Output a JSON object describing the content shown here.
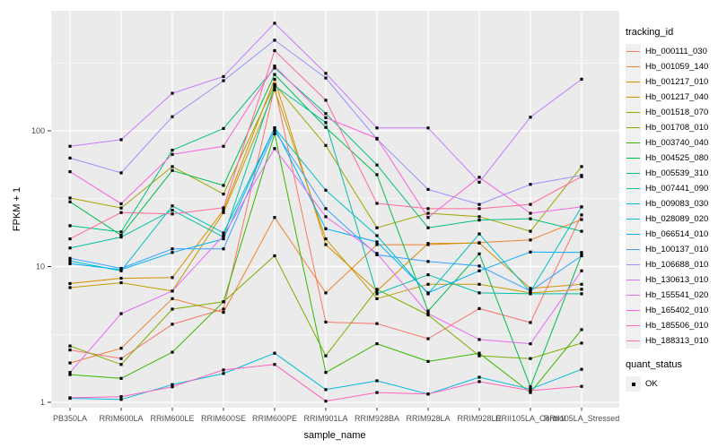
{
  "figure": {
    "panel_background": "#EBEBEB",
    "gridline_color": "#FFFFFF",
    "tick_label_color": "#4D4D4D",
    "tick_mark_color": "#333333",
    "point_color": "#000000"
  },
  "chart_data": {
    "type": "line",
    "xlabel": "sample_name",
    "ylabel": "FPKM + 1",
    "y_scale": "log10",
    "y_ticks": [
      1,
      10,
      100
    ],
    "ylim": [
      0.9,
      700
    ],
    "grid": "major+minor",
    "legend_position": "right",
    "point_shape": "filled-black-square",
    "categories": [
      "PB350LA",
      "RRIM600LA",
      "RRIM600LE",
      "RRIM600SE",
      "RRIM600PE",
      "RRIM901LA",
      "RRIM928BA",
      "RRIM928LA",
      "RRIM928LE",
      "RRII105LA_Control",
      "RRII105LA_Stressed"
    ],
    "legend": {
      "tracking_title": "tracking_id",
      "quant_title": "quant_status",
      "quant_value": "OK"
    },
    "series": [
      {
        "name": "Hb_000111_030",
        "color": "#F8766D",
        "values": [
          2.43,
          2.1,
          3.76,
          4.86,
          210,
          3.9,
          3.8,
          2.94,
          4.9,
          3.87,
          24
        ]
      },
      {
        "name": "Hb_001059_140",
        "color": "#EA8331",
        "values": [
          1.95,
          2.5,
          5.8,
          4.6,
          23,
          6.4,
          14.5,
          14.5,
          15,
          15.7,
          22.2
        ]
      },
      {
        "name": "Hb_001217_010",
        "color": "#D89000",
        "values": [
          7.5,
          8.2,
          8.3,
          26,
          240,
          14.5,
          6.6,
          14.8,
          14.9,
          6.9,
          7.4
        ]
      },
      {
        "name": "Hb_001217_040",
        "color": "#C09B00",
        "values": [
          7.0,
          7.6,
          6.6,
          25,
          200,
          16,
          5.8,
          7.4,
          7.4,
          6.4,
          6.8
        ]
      },
      {
        "name": "Hb_001518_070",
        "color": "#A3A500",
        "values": [
          32,
          27,
          54.5,
          34.2,
          220,
          78,
          19.3,
          24.7,
          23.3,
          18.2,
          54.5
        ]
      },
      {
        "name": "Hb_001708_010",
        "color": "#7CAE00",
        "values": [
          2.6,
          1.9,
          4.86,
          5.5,
          12,
          2.2,
          6.8,
          4.4,
          2.2,
          2.1,
          2.73
        ]
      },
      {
        "name": "Hb_003740_040",
        "color": "#39B600",
        "values": [
          1.6,
          1.5,
          2.34,
          5.5,
          95,
          1.66,
          2.7,
          2.0,
          2.3,
          1.18,
          3.43
        ]
      },
      {
        "name": "Hb_004525_080",
        "color": "#00BB4E",
        "values": [
          30,
          17,
          51,
          39.6,
          260,
          106,
          47.5,
          4.7,
          12.4,
          1.3,
          12.2
        ]
      },
      {
        "name": "Hb_005539_310",
        "color": "#00BF7D",
        "values": [
          20,
          18,
          72,
          104,
          290,
          134,
          56,
          19.3,
          22,
          22.5,
          18.2
        ]
      },
      {
        "name": "Hb_007441_090",
        "color": "#00C1A3",
        "values": [
          13.7,
          16.5,
          26,
          16.5,
          215,
          115,
          6.3,
          8.7,
          6.4,
          6.3,
          6.3
        ]
      },
      {
        "name": "Hb_009083_030",
        "color": "#00BFC4",
        "values": [
          11,
          9.3,
          28,
          17.7,
          105,
          36.5,
          16.9,
          6.3,
          17.4,
          6.5,
          27.5
        ]
      },
      {
        "name": "Hb_028089_020",
        "color": "#00BAE0",
        "values": [
          1.07,
          1.05,
          1.35,
          1.63,
          2.3,
          1.24,
          1.44,
          1.15,
          1.53,
          1.25,
          1.75
        ]
      },
      {
        "name": "Hb_066514_010",
        "color": "#00B0F6",
        "values": [
          10.5,
          9.5,
          12.7,
          16,
          105,
          19,
          15.2,
          6.4,
          9.3,
          12.8,
          12.7
        ]
      },
      {
        "name": "Hb_100137_010",
        "color": "#35A2FF",
        "values": [
          11.5,
          9.7,
          13.5,
          13.5,
          100,
          26.7,
          12.2,
          10.9,
          10.1,
          6.6,
          12
        ]
      },
      {
        "name": "Hb_106688_010",
        "color": "#9590FF",
        "values": [
          63,
          49,
          127,
          234,
          465,
          245,
          87,
          37,
          28.7,
          40.3,
          47
        ]
      },
      {
        "name": "Hb_130613_010",
        "color": "#C77CFF",
        "values": [
          77,
          86,
          189,
          251,
          620,
          265,
          105,
          105,
          41.8,
          126,
          240
        ]
      },
      {
        "name": "Hb_155541_020",
        "color": "#E76BF3",
        "values": [
          1.66,
          4.5,
          6.6,
          16.9,
          74,
          23.3,
          12.5,
          4.5,
          2.9,
          2.7,
          9.3
        ]
      },
      {
        "name": "Hb_165402_010",
        "color": "#FA62DB",
        "values": [
          50,
          29,
          67,
          77,
          300,
          125,
          88,
          23,
          45.5,
          24.7,
          27.5
        ]
      },
      {
        "name": "Hb_185506_010",
        "color": "#FF62BC",
        "values": [
          1.08,
          1.1,
          1.3,
          1.73,
          1.9,
          1.02,
          1.18,
          1.15,
          1.42,
          1.22,
          1.31
        ]
      },
      {
        "name": "Hb_188313_010",
        "color": "#FF6A98",
        "values": [
          16,
          25,
          24.4,
          27.1,
          390,
          168,
          29.2,
          26.7,
          26.7,
          28.7,
          46
        ]
      }
    ]
  }
}
